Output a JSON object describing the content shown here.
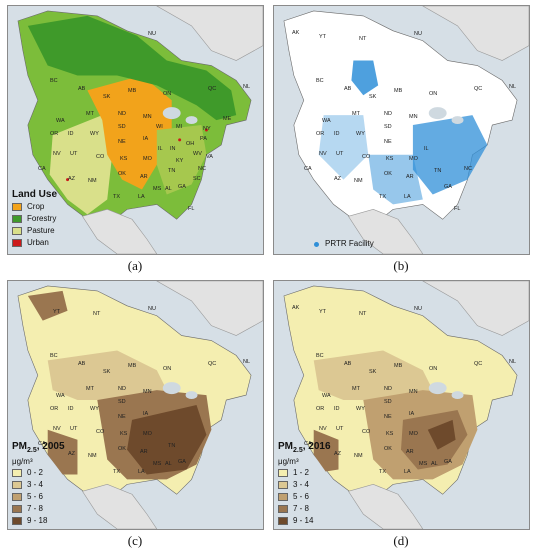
{
  "panels": [
    {
      "caption": "(a)",
      "legend_title": "Land Use",
      "legend_items": [
        {
          "label": "Crop",
          "color": "#f2a31b"
        },
        {
          "label": "Forestry",
          "color": "#3f9a2a"
        },
        {
          "label": "Pasture",
          "color": "#d9e08a"
        },
        {
          "label": "Urban",
          "color": "#cc1a1a"
        }
      ],
      "labels": [
        "NU",
        "BC",
        "AB",
        "SK",
        "MB",
        "ON",
        "QC",
        "NL",
        "WA",
        "MT",
        "ND",
        "MN",
        "ME",
        "OR",
        "ID",
        "WY",
        "SD",
        "WI",
        "MI",
        "NY",
        "NV",
        "UT",
        "NE",
        "IA",
        "IL",
        "IN",
        "OH",
        "PA",
        "CA",
        "AZ",
        "CO",
        "KS",
        "MO",
        "KY",
        "WV",
        "VA",
        "NM",
        "OK",
        "AR",
        "TN",
        "NC",
        "TX",
        "LA",
        "MS",
        "AL",
        "GA",
        "SC",
        "FL"
      ]
    },
    {
      "caption": "(b)",
      "legend_item": {
        "label": "PRTR Facility",
        "color": "#2f8fd8"
      },
      "labels": [
        "AK",
        "YT",
        "NT",
        "NU",
        "BC",
        "AB",
        "SK",
        "MB",
        "ON",
        "QC",
        "NL",
        "WA",
        "MT",
        "ND",
        "MN",
        "OR",
        "ID",
        "WY",
        "SD",
        "NV",
        "UT",
        "CO",
        "NE",
        "KS",
        "CA",
        "AZ",
        "NM",
        "OK",
        "TX",
        "MO",
        "IL",
        "AR",
        "LA",
        "TN",
        "NC",
        "GA",
        "FL"
      ]
    },
    {
      "caption": "(c)",
      "legend_title_main": "PM",
      "legend_title_sub": "2.5",
      "legend_title_rest": ", 2005",
      "legend_unit": "μg/m³",
      "legend_items": [
        {
          "label": "0 - 2",
          "color": "#f4eeb0"
        },
        {
          "label": "3 - 4",
          "color": "#dcc893"
        },
        {
          "label": "5 - 6",
          "color": "#c0a070"
        },
        {
          "label": "7 - 8",
          "color": "#9a7650"
        },
        {
          "label": "9 - 18",
          "color": "#6e4a2c"
        }
      ],
      "labels": [
        "YT",
        "NT",
        "NU",
        "BC",
        "AB",
        "SK",
        "MB",
        "ON",
        "QC",
        "NL",
        "WA",
        "MT",
        "ND",
        "MN",
        "OR",
        "ID",
        "WY",
        "SD",
        "NV",
        "UT",
        "NE",
        "IA",
        "CA",
        "CO",
        "KS",
        "MO",
        "AZ",
        "NM",
        "OK",
        "AR",
        "TN",
        "TX",
        "LA",
        "MS",
        "AL",
        "GA"
      ]
    },
    {
      "caption": "(d)",
      "legend_title_main": "PM",
      "legend_title_sub": "2.5",
      "legend_title_rest": ", 2016",
      "legend_unit": "μg/m³",
      "legend_items": [
        {
          "label": "1 - 2",
          "color": "#f4eeb0"
        },
        {
          "label": "3 - 4",
          "color": "#dcc893"
        },
        {
          "label": "5 - 6",
          "color": "#c0a070"
        },
        {
          "label": "7 - 8",
          "color": "#9a7650"
        },
        {
          "label": "9 - 14",
          "color": "#6e4a2c"
        }
      ],
      "labels": [
        "AK",
        "YT",
        "NT",
        "NU",
        "BC",
        "AB",
        "SK",
        "MB",
        "ON",
        "QC",
        "NL",
        "WA",
        "MT",
        "ND",
        "MN",
        "OR",
        "ID",
        "WY",
        "SD",
        "NV",
        "UT",
        "NE",
        "IA",
        "CA",
        "CO",
        "KS",
        "MO",
        "AZ",
        "NM",
        "OK",
        "AR",
        "TX",
        "LA",
        "MS",
        "AL",
        "GA"
      ]
    }
  ]
}
